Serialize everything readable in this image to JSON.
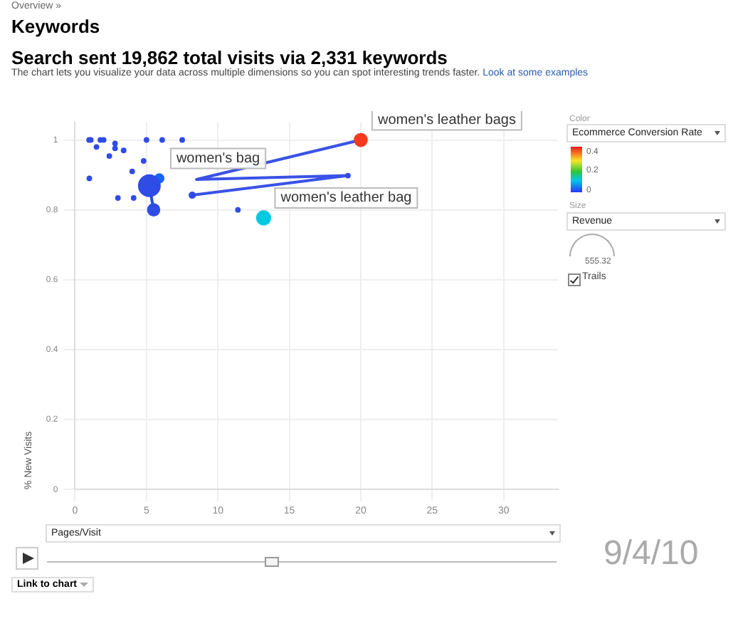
{
  "chart_data": {
    "type": "bubble",
    "title": "Search sent 19,862 total visits via 2,331 keywords",
    "subtitle": "The chart lets you visualize your data across multiple dimensions so you can spot interesting trends faster.",
    "xlabel": "Pages/Visit",
    "ylabel": "% New Visits",
    "clabel": "Ecommerce Conversion Rate",
    "clim": [
      0,
      0.47
    ],
    "cticks": [
      0,
      0.2,
      0.4
    ],
    "xlim": [
      0,
      33.8
    ],
    "ylim": [
      0,
      1.05
    ],
    "xticks": [
      0,
      5,
      10,
      15,
      20,
      25,
      30
    ],
    "yticks": [
      0,
      0.2,
      0.4,
      0.6,
      0.8,
      1
    ],
    "grid": true,
    "legend": false,
    "annotations": [
      "Overview »",
      "Keywords",
      "Look at some examples",
      "Color",
      "Size",
      "Revenue",
      "555.32",
      "Trails",
      "Link to chart",
      "9/4/10"
    ],
    "series": [
      {
        "type": "line",
        "color": "#3a52e6",
        "x": [
          8.2,
          19.1,
          8.5,
          20.0
        ],
        "values": [
          0.842,
          0.898,
          0.887,
          1.0
        ]
      },
      {
        "type": "line",
        "color": "#2a4be0",
        "x": [
          5.9,
          5.2,
          5.5
        ],
        "values": [
          0.89,
          0.869,
          0.8
        ]
      },
      {
        "x": [
          0.98,
          1.1,
          1.77,
          2.0,
          2.8,
          5.0,
          6.1,
          7.5,
          1.5,
          2.8,
          3.4,
          2.4,
          4.8,
          4.0,
          1.0,
          3.0,
          4.1,
          11.4,
          5.2,
          5.5,
          8.2,
          19.1
        ],
        "values": [
          1.0,
          1.0,
          1.0,
          1.0,
          0.99,
          1.0,
          1.0,
          1.0,
          0.98,
          0.976,
          0.97,
          0.954,
          0.94,
          0.91,
          0.89,
          0.834,
          0.834,
          0.8,
          0.869,
          0.8,
          0.842,
          0.898
        ],
        "sizes": [
          0.06,
          0.06,
          0.06,
          0.06,
          0.06,
          0.06,
          0.06,
          0.06,
          0.06,
          0.06,
          0.06,
          0.06,
          0.06,
          0.06,
          0.06,
          0.06,
          0.06,
          0.06,
          1,
          0.34,
          0.1,
          0.06
        ],
        "color": "#2f4ce6"
      },
      {
        "name": "women's leather bags",
        "x": [
          20.0
        ],
        "values": [
          1.0
        ],
        "sizes": [
          0.38
        ],
        "cvalues": [
          0.45
        ]
      },
      {
        "name": "women's bag",
        "x": [
          5.9
        ],
        "values": [
          0.89
        ],
        "sizes": [
          0.2
        ],
        "cvalues": [
          0.03
        ]
      },
      {
        "name": "women's leather bag",
        "x": [
          13.2
        ],
        "values": [
          0.777
        ],
        "sizes": [
          0.44
        ],
        "cvalues": [
          0.12
        ]
      }
    ]
  }
}
